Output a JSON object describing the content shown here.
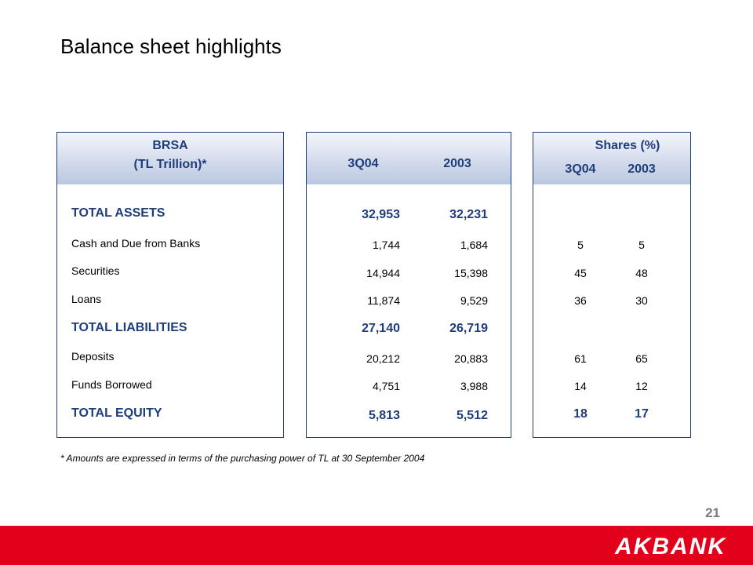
{
  "title": "Balance sheet highlights",
  "panel1": {
    "line1": "BRSA",
    "line2": "(TL Trillion)*"
  },
  "panel2": {
    "col1": "3Q04",
    "col2": "2003"
  },
  "panel3": {
    "title": "Shares (%)",
    "col1": "3Q04",
    "col2": "2003"
  },
  "rows": [
    {
      "label": "TOTAL ASSETS",
      "v1": "32,953",
      "v2": "32,231",
      "s1": "",
      "s2": ""
    },
    {
      "label": "Cash and Due from Banks",
      "v1": "1,744",
      "v2": "1,684",
      "s1": "5",
      "s2": "5"
    },
    {
      "label": "Securities",
      "v1": "14,944",
      "v2": "15,398",
      "s1": "45",
      "s2": "48"
    },
    {
      "label": "Loans",
      "v1": "11,874",
      "v2": "9,529",
      "s1": "36",
      "s2": "30"
    },
    {
      "label": "TOTAL LIABILITIES",
      "v1": "27,140",
      "v2": "26,719",
      "s1": "",
      "s2": ""
    },
    {
      "label": "Deposits",
      "v1": "20,212",
      "v2": "20,883",
      "s1": "61",
      "s2": "65"
    },
    {
      "label": "Funds Borrowed",
      "v1": "4,751",
      "v2": "3,988",
      "s1": "14",
      "s2": "12"
    },
    {
      "label": "TOTAL EQUITY",
      "v1": "5,813",
      "v2": "5,512",
      "s1": "18",
      "s2": "17"
    }
  ],
  "footnote": "* Amounts are expressed in terms of the purchasing power of TL at 30 September 2004",
  "page_number": "21",
  "brand": "AKBANK"
}
